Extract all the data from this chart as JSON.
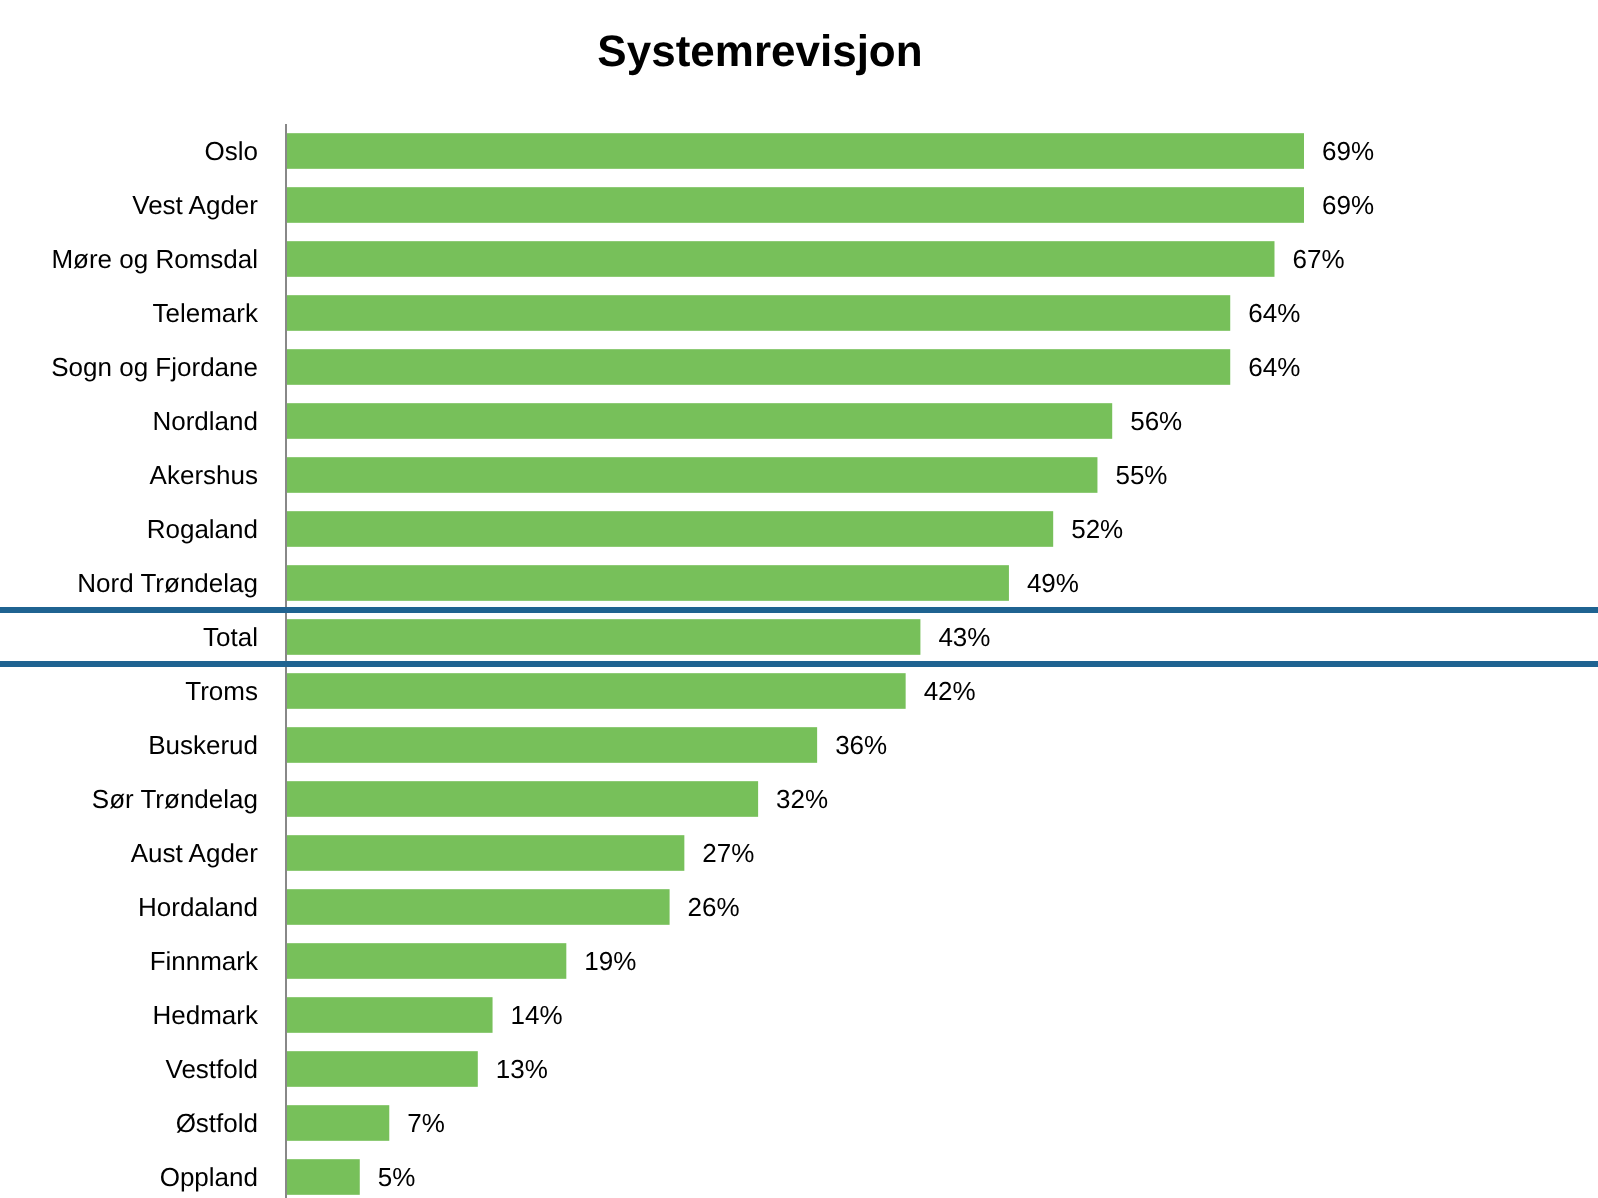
{
  "chart_data": {
    "type": "bar",
    "orientation": "horizontal",
    "title": "Systemrevisjon",
    "categories": [
      "Oslo",
      "Vest Agder",
      "Møre og Romsdal",
      "Telemark",
      "Sogn og Fjordane",
      "Nordland",
      "Akershus",
      "Rogaland",
      "Nord Trøndelag",
      "Total",
      "Troms",
      "Buskerud",
      "Sør Trøndelag",
      "Aust Agder",
      "Hordaland",
      "Finnmark",
      "Hedmark",
      "Vestfold",
      "Østfold",
      "Oppland"
    ],
    "values": [
      69,
      69,
      67,
      64,
      64,
      56,
      55,
      52,
      49,
      43,
      42,
      36,
      32,
      27,
      26,
      19,
      14,
      13,
      7,
      5
    ],
    "value_labels": [
      "69%",
      "69%",
      "67%",
      "64%",
      "64%",
      "56%",
      "55%",
      "52%",
      "49%",
      "43%",
      "42%",
      "36%",
      "32%",
      "27%",
      "26%",
      "19%",
      "14%",
      "13%",
      "7%",
      "5%"
    ],
    "color": "#77c05a"
  }
}
